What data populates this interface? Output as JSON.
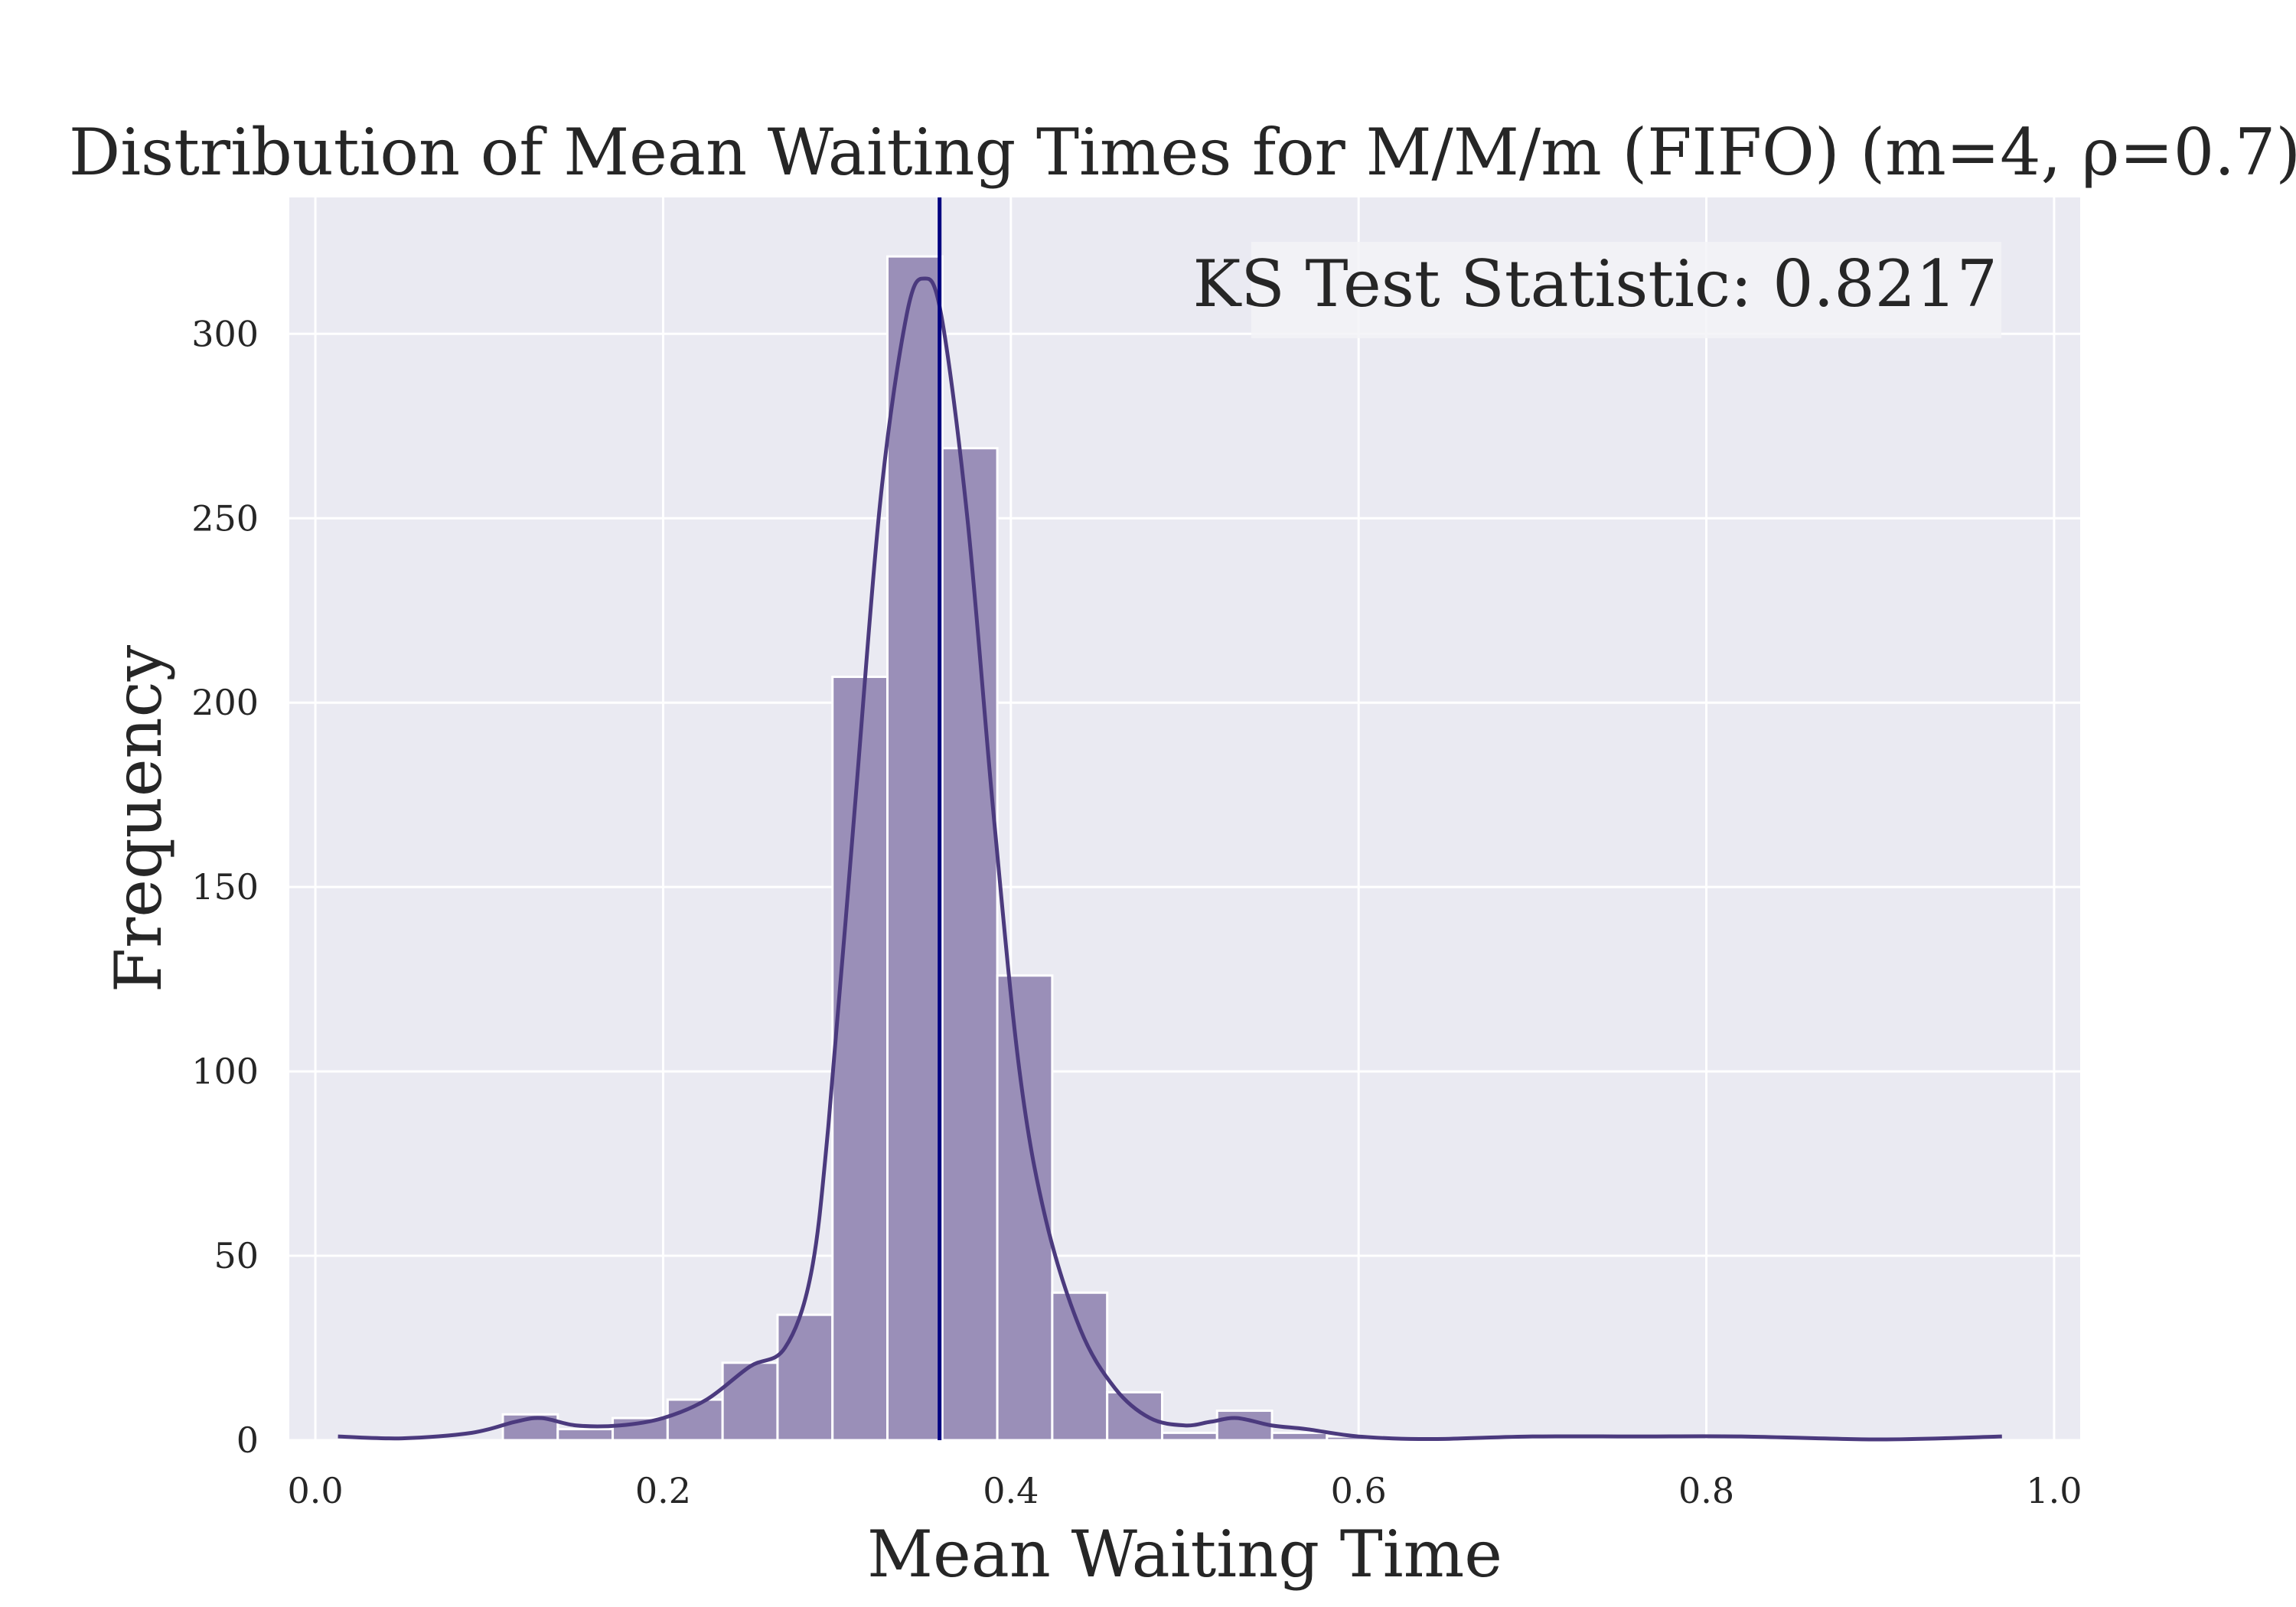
{
  "chart_data": {
    "type": "bar",
    "title": "Distribution of Mean Waiting Times for M/M/m (FIFO) (m=4, ρ=0.7)",
    "xlabel": "Mean Waiting Time",
    "ylabel": "Frequency",
    "xlim": [
      -0.015,
      1.015
    ],
    "ylim": [
      0,
      337
    ],
    "xticks": [
      0.0,
      0.2,
      0.4,
      0.6,
      0.8,
      1.0
    ],
    "xtick_labels": [
      "0.0",
      "0.2",
      "0.4",
      "0.6",
      "0.8",
      "1.0"
    ],
    "yticks": [
      0,
      50,
      100,
      150,
      200,
      250,
      300
    ],
    "ytick_labels": [
      "0",
      "50",
      "100",
      "150",
      "200",
      "250",
      "300"
    ],
    "grid": true,
    "bins": {
      "edges": [
        0.013,
        0.0446,
        0.0762,
        0.1078,
        0.1394,
        0.171,
        0.2026,
        0.2342,
        0.2658,
        0.2974,
        0.329,
        0.3606,
        0.3922,
        0.4238,
        0.4554,
        0.487,
        0.5186,
        0.5502,
        0.5818,
        0.6134,
        0.645,
        0.6766,
        0.7082,
        0.7398,
        0.7714,
        0.803,
        0.8346,
        0.8662,
        0.8978,
        0.9294,
        0.961
      ],
      "counts": [
        0,
        0,
        0,
        7,
        3,
        6,
        11,
        21,
        34,
        207,
        321,
        269,
        126,
        40,
        13,
        2,
        8,
        2,
        1,
        0,
        0,
        0,
        0,
        0,
        0,
        0,
        0,
        0,
        0,
        0
      ]
    },
    "kde": {
      "x": [
        0.013,
        0.05,
        0.09,
        0.115,
        0.13,
        0.15,
        0.175,
        0.2,
        0.225,
        0.25,
        0.27,
        0.285,
        0.295,
        0.31,
        0.325,
        0.34,
        0.35,
        0.36,
        0.375,
        0.39,
        0.405,
        0.42,
        0.44,
        0.46,
        0.48,
        0.5,
        0.515,
        0.53,
        0.55,
        0.57,
        0.6,
        0.64,
        0.7,
        0.76,
        0.82,
        0.9,
        0.97
      ],
      "y": [
        1,
        0.5,
        2,
        5,
        6,
        4,
        4,
        6,
        11,
        20,
        25,
        45,
        85,
        170,
        255,
        305,
        315,
        305,
        250,
        170,
        100,
        60,
        30,
        14,
        6,
        4,
        5,
        6,
        4,
        3,
        1,
        0.3,
        1,
        1,
        1,
        0.2,
        1
      ]
    },
    "vline": {
      "x": 0.359,
      "color": "#000080"
    },
    "annotation": "KS Test Statistic: 0.8217",
    "annotation_position": "top-right",
    "colors": {
      "axes_background": "#eaeaf2",
      "grid": "#ffffff",
      "bar_fill": "#9a8fb8",
      "bar_edge": "#ffffff",
      "kde_line": "#4b3a7e",
      "annotation_box": "#f3f3f7"
    }
  }
}
